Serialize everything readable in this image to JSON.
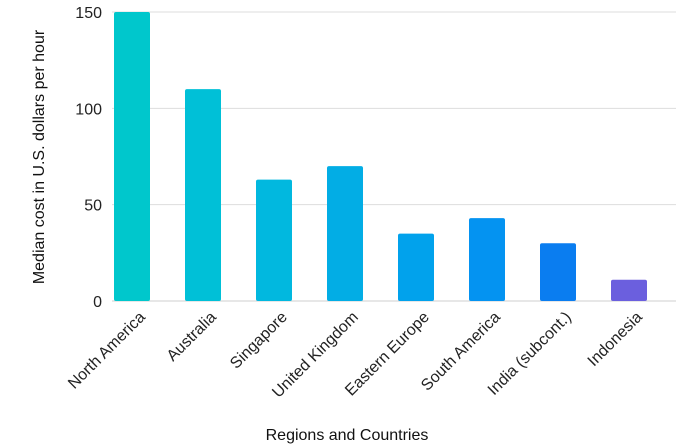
{
  "chart_data": {
    "type": "bar",
    "categories": [
      "North America",
      "Australia",
      "Singapore",
      "United Kingdom",
      "Eastern Europe",
      "South America",
      "India (subcont.)",
      "Indonesia"
    ],
    "values": [
      150,
      110,
      63,
      70,
      35,
      43,
      30,
      11
    ],
    "bar_colors": [
      "#00C7CC",
      "#00C0D7",
      "#01B8DF",
      "#02ADE5",
      "#01A2EC",
      "#0493F1",
      "#0A7DF0",
      "#6B5FDE"
    ],
    "xlabel": "Regions and Countries",
    "ylabel": "Median cost in U.S. dollars per hour",
    "ylim": [
      0,
      150
    ],
    "yticks": [
      0,
      50,
      100,
      150
    ],
    "grid": true
  }
}
